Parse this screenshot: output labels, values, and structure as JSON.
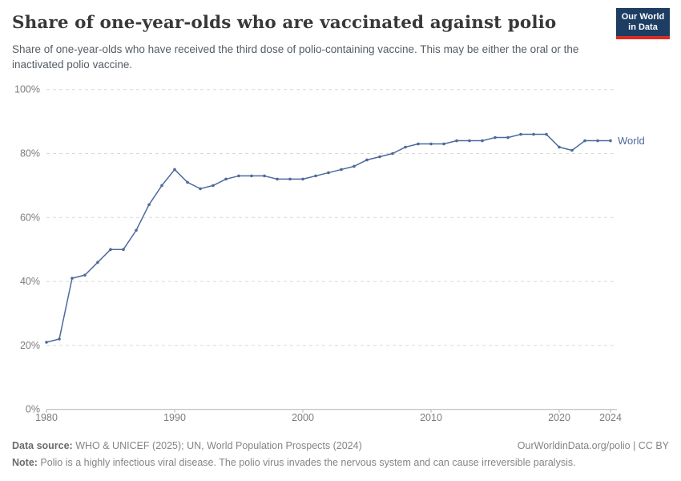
{
  "header": {
    "title": "Share of one-year-olds who are vaccinated against polio",
    "subtitle": "Share of one-year-olds who have received the third dose of polio-containing vaccine. This may be either the oral or the inactivated polio vaccine.",
    "logo": {
      "line1": "Our World",
      "line2": "in Data",
      "bg_color": "#1d3d63",
      "accent_color": "#dc2d20"
    }
  },
  "chart_data": {
    "type": "line",
    "title": "Share of one-year-olds who are vaccinated against polio",
    "x": [
      1980,
      1981,
      1982,
      1983,
      1984,
      1985,
      1986,
      1987,
      1988,
      1989,
      1990,
      1991,
      1992,
      1993,
      1994,
      1995,
      1996,
      1997,
      1998,
      1999,
      2000,
      2001,
      2002,
      2003,
      2004,
      2005,
      2006,
      2007,
      2008,
      2009,
      2010,
      2011,
      2012,
      2013,
      2014,
      2015,
      2016,
      2017,
      2018,
      2019,
      2020,
      2021,
      2022,
      2023,
      2024
    ],
    "series": [
      {
        "name": "World",
        "color": "#4c6a9c",
        "values": [
          21,
          22,
          41,
          42,
          46,
          50,
          50,
          56,
          64,
          70,
          75,
          71,
          69,
          70,
          72,
          73,
          73,
          73,
          72,
          72,
          72,
          73,
          74,
          75,
          76,
          78,
          79,
          80,
          82,
          83,
          83,
          83,
          84,
          84,
          84,
          85,
          85,
          86,
          86,
          86,
          82,
          81,
          84,
          84,
          84
        ]
      }
    ],
    "xlabel": "",
    "ylabel": "",
    "ylim": [
      0,
      100
    ],
    "yticks": [
      0,
      20,
      40,
      60,
      80,
      100
    ],
    "ytick_suffix": "%",
    "xticks": [
      1980,
      1990,
      2000,
      2010,
      2020,
      2024
    ],
    "grid": "horizontal-dashed",
    "point_markers": true,
    "end_label": "World",
    "legend_position": "end-of-line",
    "colors": {
      "line": "#4c6a9c",
      "gridline": "#d9d9d9",
      "axis": "#b3b3b3",
      "tick_label": "#7d7d7d"
    }
  },
  "footer": {
    "datasource_label": "Data source:",
    "datasource_text": " WHO & UNICEF (2025); UN, World Population Prospects (2024)",
    "rights": "OurWorldinData.org/polio | CC BY",
    "note_label": "Note:",
    "note_text": " Polio is a highly infectious viral disease. The polio virus invades the nervous system and can cause irreversible paralysis."
  }
}
